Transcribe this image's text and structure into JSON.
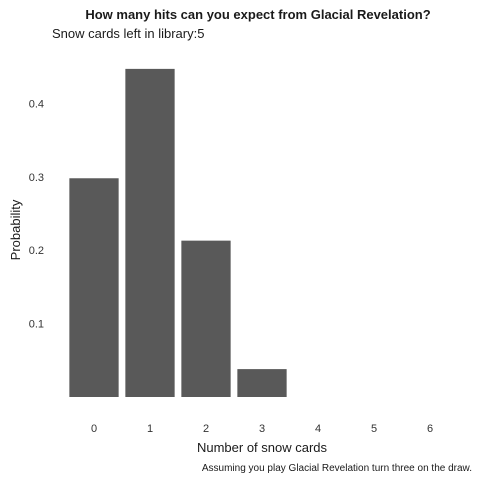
{
  "chart_data": {
    "type": "bar",
    "title": "How many hits can you expect from Glacial Revelation?",
    "subtitle": "Snow cards left in library:5",
    "xlabel": "Number of snow cards",
    "ylabel": "Probability",
    "caption": "Assuming you play Glacial Revelation turn three on the draw.",
    "categories": [
      "0",
      "1",
      "2",
      "3",
      "4",
      "5",
      "6"
    ],
    "values": [
      0.298,
      0.447,
      0.213,
      0.038,
      0,
      0,
      0
    ],
    "yticks": [
      "0.1",
      "0.2",
      "0.3",
      "0.4"
    ],
    "ytick_values": [
      0.1,
      0.2,
      0.3,
      0.4
    ],
    "ylim": [
      0,
      0.47
    ],
    "grid": false,
    "bar_color": "#595959"
  }
}
